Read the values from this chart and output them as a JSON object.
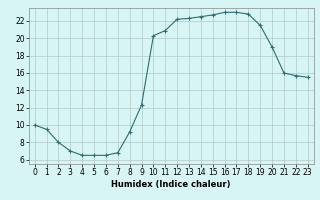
{
  "x": [
    0,
    1,
    2,
    3,
    4,
    5,
    6,
    7,
    8,
    9,
    10,
    11,
    12,
    13,
    14,
    15,
    16,
    17,
    18,
    19,
    20,
    21,
    22,
    23
  ],
  "y": [
    10,
    9.5,
    8,
    7,
    6.5,
    6.5,
    6.5,
    6.8,
    9.2,
    12.3,
    20.3,
    20.9,
    22.2,
    22.3,
    22.5,
    22.7,
    23.0,
    23.0,
    22.8,
    21.5,
    19.0,
    16.0,
    15.7,
    15.5
  ],
  "line_color": "#2d6e6e",
  "marker": "D",
  "marker_size": 2,
  "bg_color": "#d8f5f5",
  "grid_color": "#b0c8c8",
  "xlabel": "Humidex (Indice chaleur)",
  "ylim": [
    6,
    23
  ],
  "xlim": [
    -0.5,
    23.5
  ],
  "yticks": [
    6,
    8,
    10,
    12,
    14,
    16,
    18,
    20,
    22
  ],
  "xticks": [
    0,
    1,
    2,
    3,
    4,
    5,
    6,
    7,
    8,
    9,
    10,
    11,
    12,
    13,
    14,
    15,
    16,
    17,
    18,
    19,
    20,
    21,
    22,
    23
  ],
  "label_fontsize": 6,
  "tick_fontsize": 5.5
}
